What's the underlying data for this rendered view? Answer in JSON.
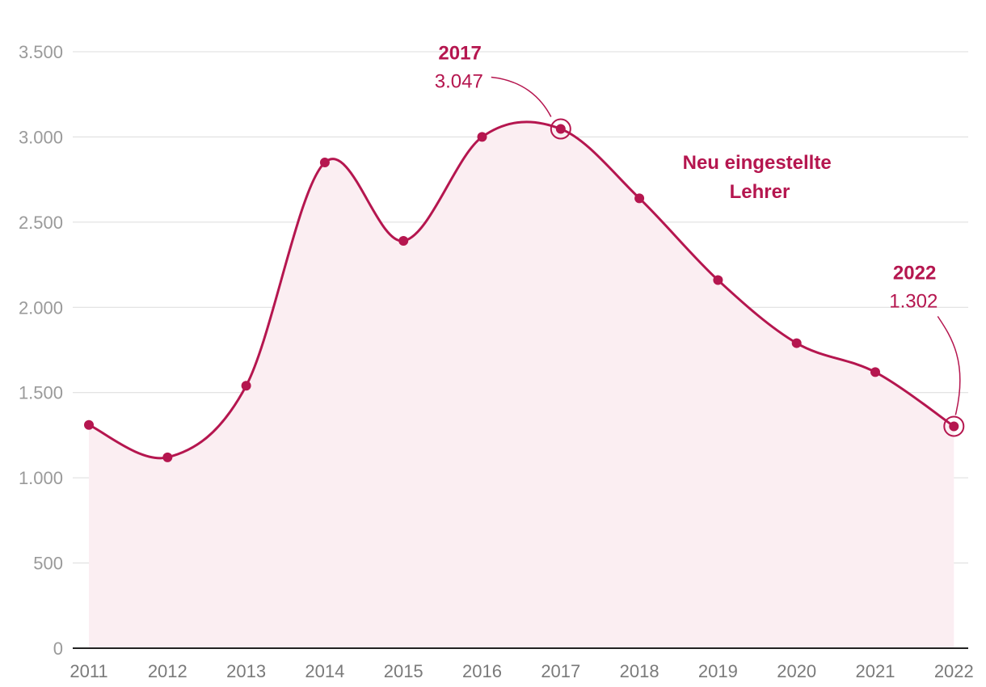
{
  "colors": {
    "accent": "#b5164f",
    "area_fill": "#fbeef2",
    "grid": "#dcdcdc",
    "tick_text": "#9a9a9a"
  },
  "chart_data": {
    "type": "area",
    "categories": [
      "2011",
      "2012",
      "2013",
      "2014",
      "2015",
      "2016",
      "2017",
      "2018",
      "2019",
      "2020",
      "2021",
      "2022"
    ],
    "series": [
      {
        "name": "Neu eingestellte Lehrer",
        "values": [
          1310,
          1120,
          1540,
          2850,
          2390,
          3000,
          3047,
          2640,
          2160,
          1790,
          1620,
          1302
        ]
      }
    ],
    "y_ticks": [
      {
        "value": 0,
        "label": "0"
      },
      {
        "value": 500,
        "label": "500"
      },
      {
        "value": 1000,
        "label": "1.000"
      },
      {
        "value": 1500,
        "label": "1.500"
      },
      {
        "value": 2000,
        "label": "2.000"
      },
      {
        "value": 2500,
        "label": "2.500"
      },
      {
        "value": 3000,
        "label": "3.000"
      },
      {
        "value": 3500,
        "label": "3.500"
      }
    ],
    "ylim": [
      0,
      3500
    ],
    "grid": true,
    "series_label_lines": [
      "Neu eingestellte",
      "Lehrer"
    ],
    "annotations": [
      {
        "category": "2017",
        "year_label": "2017",
        "value_label": "3.047"
      },
      {
        "category": "2022",
        "year_label": "2022",
        "value_label": "1.302"
      }
    ]
  }
}
